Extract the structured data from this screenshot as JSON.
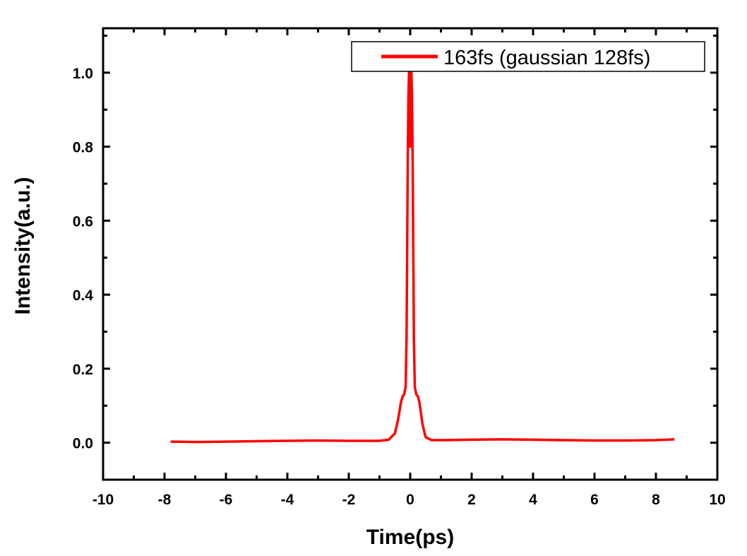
{
  "chart_data": {
    "type": "line",
    "xlabel": "Time(ps)",
    "ylabel": "Intensity(a.u.)",
    "xlim": [
      -10,
      10
    ],
    "ylim": [
      -0.1,
      1.12
    ],
    "x_ticks": [
      -10,
      -8,
      -6,
      -4,
      -2,
      0,
      2,
      4,
      6,
      8,
      10
    ],
    "x_tick_labels": [
      "-10",
      "-8",
      "-6",
      "-4",
      "-2",
      "0",
      "2",
      "4",
      "6",
      "8",
      "10"
    ],
    "y_ticks": [
      0.0,
      0.2,
      0.4,
      0.6,
      0.8,
      1.0
    ],
    "y_tick_labels": [
      "0.0",
      "0.2",
      "0.4",
      "0.6",
      "0.8",
      "1.0"
    ],
    "grid": false,
    "legend_position": "top-right",
    "series": [
      {
        "name": "163fs (gaussian 128fs)",
        "color": "#ff0000",
        "x": [
          -7.8,
          -7.0,
          -6.0,
          -5.0,
          -4.0,
          -3.0,
          -2.0,
          -1.5,
          -1.0,
          -0.7,
          -0.5,
          -0.4,
          -0.3,
          -0.25,
          -0.2,
          -0.15,
          -0.12,
          -0.1,
          -0.08,
          -0.06,
          -0.04,
          -0.02,
          0.0,
          0.02,
          0.04,
          0.06,
          0.08,
          0.1,
          0.12,
          0.15,
          0.2,
          0.25,
          0.3,
          0.4,
          0.5,
          0.7,
          1.0,
          2.0,
          3.0,
          4.0,
          5.0,
          6.0,
          7.0,
          8.0,
          8.6
        ],
        "y": [
          0.003,
          0.002,
          0.003,
          0.004,
          0.005,
          0.006,
          0.005,
          0.005,
          0.005,
          0.008,
          0.025,
          0.06,
          0.11,
          0.125,
          0.13,
          0.15,
          0.28,
          0.5,
          0.75,
          0.93,
          1.0,
          0.96,
          0.8,
          0.96,
          1.0,
          0.93,
          0.75,
          0.5,
          0.28,
          0.15,
          0.13,
          0.125,
          0.11,
          0.05,
          0.015,
          0.007,
          0.007,
          0.008,
          0.009,
          0.008,
          0.007,
          0.006,
          0.006,
          0.007,
          0.009
        ]
      }
    ]
  }
}
